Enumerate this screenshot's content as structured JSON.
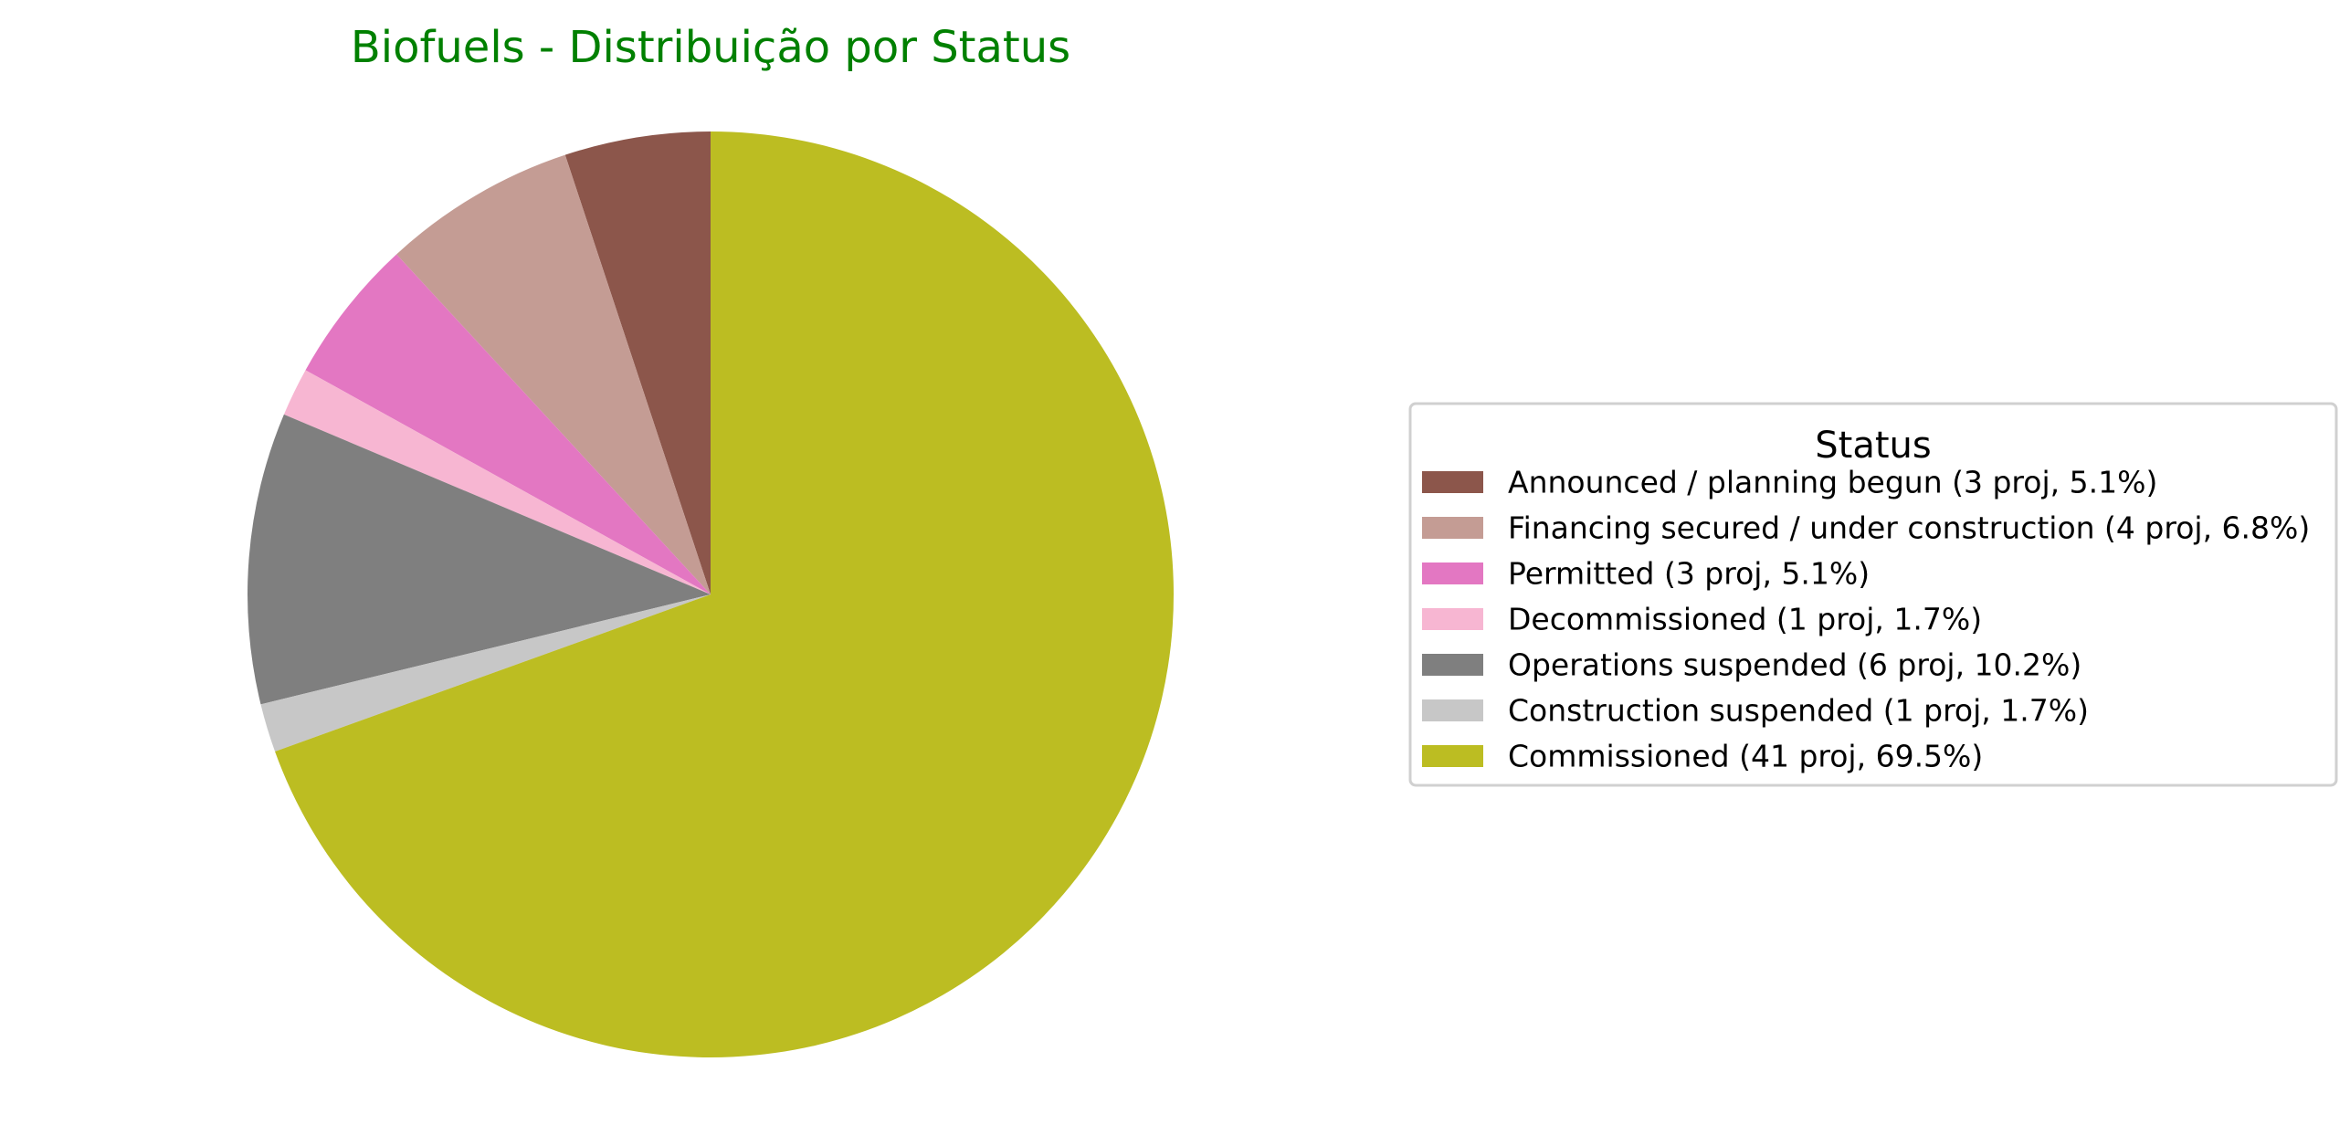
{
  "chart_data": {
    "type": "pie",
    "title": "Biofuels - Distribuição por Status",
    "title_color": "#008000",
    "start_angle_deg": 90,
    "direction": "counterclockwise",
    "legend": {
      "title": "Status",
      "placement": "right"
    },
    "slices": [
      {
        "label": "Announced / planning begun",
        "projects": 3,
        "percent": 5.1,
        "legend_text": "Announced / planning begun (3 proj, 5.1%)",
        "color": "#8c564b"
      },
      {
        "label": "Financing secured / under construction",
        "projects": 4,
        "percent": 6.8,
        "legend_text": "Financing secured / under construction (4 proj, 6.8%)",
        "color": "#c49c94"
      },
      {
        "label": "Permitted",
        "projects": 3,
        "percent": 5.1,
        "legend_text": "Permitted (3 proj, 5.1%)",
        "color": "#e377c2"
      },
      {
        "label": "Decommissioned",
        "projects": 1,
        "percent": 1.7,
        "legend_text": "Decommissioned (1 proj, 1.7%)",
        "color": "#f7b6d2"
      },
      {
        "label": "Operations suspended",
        "projects": 6,
        "percent": 10.2,
        "legend_text": "Operations suspended (6 proj, 10.2%)",
        "color": "#7f7f7f"
      },
      {
        "label": "Construction suspended",
        "projects": 1,
        "percent": 1.7,
        "legend_text": "Construction suspended (1 proj, 1.7%)",
        "color": "#c7c7c7"
      },
      {
        "label": "Commissioned",
        "projects": 41,
        "percent": 69.5,
        "legend_text": "Commissioned (41 proj, 69.5%)",
        "color": "#bcbd22"
      }
    ]
  }
}
